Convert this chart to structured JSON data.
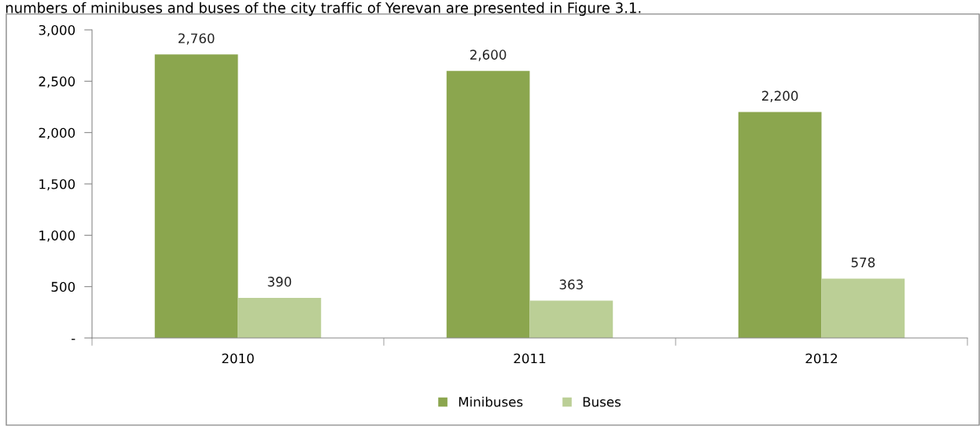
{
  "chart_data": {
    "type": "bar",
    "categories": [
      "2010",
      "2011",
      "2012"
    ],
    "series": [
      {
        "name": "Minibuses",
        "color": "#8ba64e",
        "values": [
          2760,
          2600,
          2200
        ],
        "value_labels": [
          "2,760",
          "2,600",
          "2,200"
        ]
      },
      {
        "name": "Buses",
        "color": "#bbcf96",
        "values": [
          390,
          363,
          578
        ],
        "value_labels": [
          "390",
          "363",
          "578"
        ]
      }
    ],
    "ylim": [
      0,
      3000
    ],
    "yticks": [
      {
        "value": 0,
        "label": "-"
      },
      {
        "value": 500,
        "label": "500"
      },
      {
        "value": 1000,
        "label": "1,000"
      },
      {
        "value": 1500,
        "label": "1,500"
      },
      {
        "value": 2000,
        "label": "2,000"
      },
      {
        "value": 2500,
        "label": "2,500"
      },
      {
        "value": 3000,
        "label": "3,000"
      }
    ],
    "grid": false,
    "legend": "bottom",
    "annotations": [
      "numbers of minibuses and buses of the city traffic of Yerevan are presented in Figure 3.1."
    ]
  }
}
